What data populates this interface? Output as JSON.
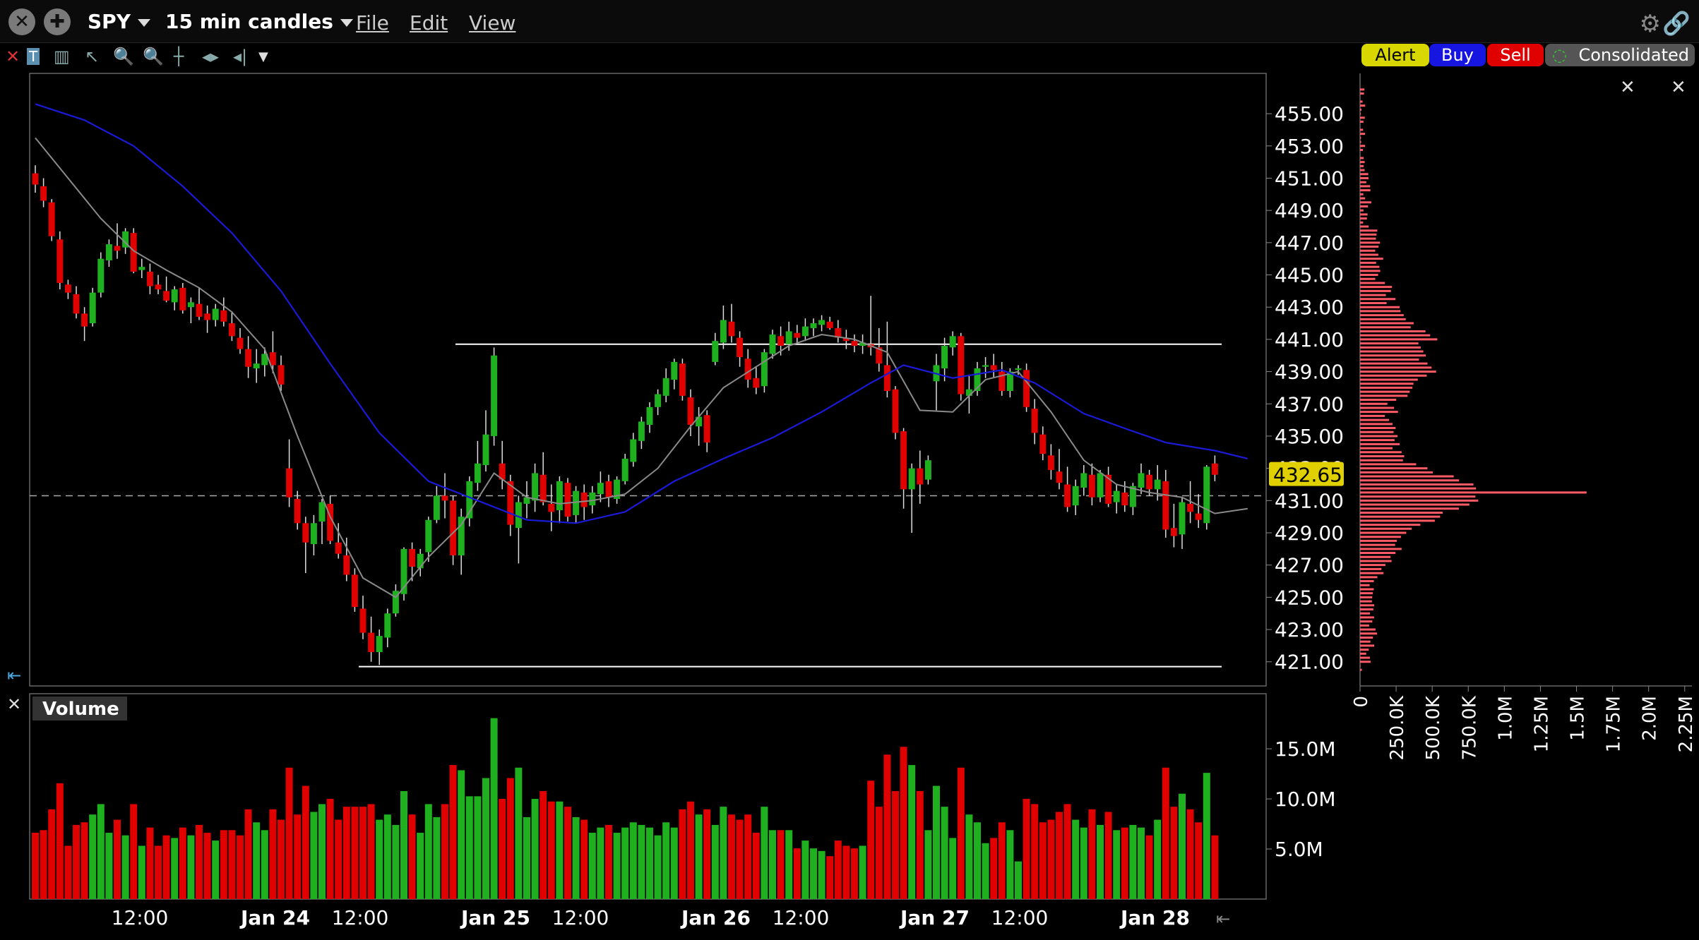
{
  "toolbar": {
    "symbol": "SPY",
    "interval": "15 min candles",
    "menu_file": "File",
    "menu_edit": "Edit",
    "menu_view": "View"
  },
  "order_buttons": {
    "alert": "Alert",
    "buy": "Buy",
    "sell": "Sell",
    "route": "Consolidated"
  },
  "colors": {
    "up": "#1fb01f",
    "down": "#e00000",
    "ma_fast": "#8a8a8a",
    "ma_slow": "#1a1ad8",
    "volume_profile": "#ff5a66",
    "last_price_bg": "#e0d000"
  },
  "chart_data": [
    {
      "type": "candlestick",
      "title": "",
      "ylim": [
        419.5,
        457.5
      ],
      "yticks": [
        "455.00",
        "453.00",
        "451.00",
        "449.00",
        "447.00",
        "445.00",
        "443.00",
        "441.00",
        "439.00",
        "437.00",
        "435.00",
        "433.00",
        "431.00",
        "429.00",
        "427.00",
        "425.00",
        "423.00",
        "421.00"
      ],
      "x_tick_labels": [
        "12:00",
        "Jan 24",
        "12:00",
        "Jan 25",
        "12:00",
        "Jan 26",
        "12:00",
        "Jan 27",
        "12:00",
        "Jan 28"
      ],
      "last_price": "432.65",
      "reference_price": 431.3,
      "horizontal_lines": [
        440.7,
        420.7
      ],
      "candles": [
        [
          451.3,
          451.8,
          450.1,
          450.6
        ],
        [
          450.5,
          451.0,
          449.2,
          449.6
        ],
        [
          449.5,
          449.7,
          447.1,
          447.4
        ],
        [
          447.2,
          447.7,
          444.1,
          444.5
        ],
        [
          444.4,
          444.7,
          443.5,
          443.9
        ],
        [
          443.8,
          444.3,
          442.3,
          442.6
        ],
        [
          442.6,
          443.0,
          440.9,
          441.8
        ],
        [
          442.0,
          444.2,
          441.8,
          443.9
        ],
        [
          443.9,
          446.4,
          443.6,
          446.0
        ],
        [
          445.9,
          447.2,
          445.5,
          446.9
        ],
        [
          446.8,
          448.2,
          446.0,
          446.5
        ],
        [
          446.7,
          447.9,
          446.3,
          447.7
        ],
        [
          447.6,
          447.9,
          445.1,
          445.2
        ],
        [
          445.3,
          446.0,
          444.8,
          445.5
        ],
        [
          445.2,
          445.7,
          443.8,
          444.3
        ],
        [
          444.4,
          445.0,
          443.8,
          444.1
        ],
        [
          444.0,
          444.9,
          443.3,
          443.4
        ],
        [
          443.3,
          444.3,
          442.8,
          444.1
        ],
        [
          444.2,
          444.5,
          442.6,
          442.8
        ],
        [
          443.0,
          443.6,
          442.0,
          443.3
        ],
        [
          443.2,
          444.2,
          442.2,
          442.4
        ],
        [
          442.6,
          443.1,
          441.4,
          442.2
        ],
        [
          442.2,
          443.2,
          441.8,
          442.9
        ],
        [
          442.8,
          443.6,
          441.8,
          442.1
        ],
        [
          442.0,
          442.7,
          440.9,
          441.2
        ],
        [
          441.1,
          441.7,
          440.1,
          440.4
        ],
        [
          440.4,
          441.2,
          438.6,
          439.3
        ],
        [
          439.2,
          440.4,
          438.3,
          439.5
        ],
        [
          439.4,
          440.5,
          438.7,
          440.1
        ],
        [
          440.2,
          441.5,
          438.9,
          439.4
        ],
        [
          439.4,
          440.0,
          437.8,
          438.2
        ],
        [
          433.0,
          434.8,
          430.6,
          431.2
        ],
        [
          431.1,
          431.6,
          429.2,
          429.6
        ],
        [
          429.6,
          430.0,
          426.5,
          428.4
        ],
        [
          428.3,
          430.1,
          427.6,
          429.6
        ],
        [
          429.7,
          431.1,
          428.3,
          430.9
        ],
        [
          430.8,
          431.3,
          428.3,
          428.5
        ],
        [
          428.4,
          429.6,
          427.4,
          427.7
        ],
        [
          427.6,
          428.7,
          426.0,
          426.4
        ],
        [
          426.4,
          426.8,
          424.1,
          424.4
        ],
        [
          424.3,
          425.1,
          422.4,
          422.8
        ],
        [
          422.8,
          423.8,
          421.0,
          421.6
        ],
        [
          421.6,
          423.0,
          420.8,
          422.6
        ],
        [
          422.5,
          424.3,
          421.9,
          424.0
        ],
        [
          424.0,
          425.8,
          423.8,
          425.4
        ],
        [
          425.2,
          428.1,
          424.8,
          428.0
        ],
        [
          428.0,
          428.4,
          426.0,
          426.9
        ],
        [
          426.8,
          428.0,
          426.3,
          427.7
        ],
        [
          427.8,
          430.0,
          427.2,
          429.8
        ],
        [
          429.8,
          431.9,
          429.6,
          431.3
        ],
        [
          431.3,
          432.7,
          429.9,
          431.0
        ],
        [
          431.0,
          431.3,
          427.0,
          427.6
        ],
        [
          427.6,
          430.5,
          426.4,
          430.0
        ],
        [
          429.9,
          432.5,
          429.4,
          432.2
        ],
        [
          432.1,
          434.7,
          431.6,
          433.3
        ],
        [
          433.2,
          436.6,
          432.8,
          435.1
        ],
        [
          435.0,
          440.5,
          434.4,
          440.0
        ],
        [
          433.3,
          434.7,
          431.7,
          432.3
        ],
        [
          432.2,
          432.6,
          428.8,
          429.5
        ],
        [
          429.3,
          431.3,
          427.1,
          430.9
        ],
        [
          430.8,
          432.2,
          429.9,
          431.2
        ],
        [
          431.0,
          433.3,
          430.3,
          432.7
        ],
        [
          432.6,
          434.0,
          430.7,
          430.9
        ],
        [
          430.8,
          432.0,
          429.1,
          430.3
        ],
        [
          430.4,
          432.5,
          429.6,
          432.2
        ],
        [
          432.1,
          432.4,
          429.7,
          430.0
        ],
        [
          430.1,
          431.9,
          429.6,
          431.6
        ],
        [
          431.5,
          432.0,
          429.8,
          430.6
        ],
        [
          430.7,
          431.9,
          430.2,
          431.5
        ],
        [
          431.4,
          432.8,
          430.9,
          432.1
        ],
        [
          432.2,
          432.6,
          430.6,
          431.2
        ],
        [
          431.1,
          432.5,
          430.8,
          432.3
        ],
        [
          432.2,
          433.9,
          432.0,
          433.6
        ],
        [
          433.4,
          435.2,
          433.1,
          434.8
        ],
        [
          434.7,
          436.2,
          434.2,
          435.9
        ],
        [
          435.7,
          437.1,
          435.2,
          436.8
        ],
        [
          436.8,
          437.9,
          436.3,
          437.6
        ],
        [
          437.5,
          439.2,
          437.1,
          438.6
        ],
        [
          438.5,
          439.8,
          437.9,
          439.6
        ],
        [
          439.5,
          439.8,
          437.2,
          437.5
        ],
        [
          437.4,
          437.9,
          435.0,
          435.7
        ],
        [
          435.6,
          436.8,
          434.4,
          436.2
        ],
        [
          436.3,
          436.6,
          434.0,
          434.6
        ],
        [
          439.6,
          441.4,
          439.4,
          440.9
        ],
        [
          440.8,
          443.1,
          440.4,
          442.2
        ],
        [
          442.1,
          443.2,
          440.8,
          441.2
        ],
        [
          441.1,
          441.5,
          439.3,
          439.9
        ],
        [
          439.8,
          440.4,
          438.0,
          438.5
        ],
        [
          438.6,
          439.3,
          437.6,
          438.0
        ],
        [
          438.1,
          440.4,
          437.7,
          440.2
        ],
        [
          440.1,
          441.6,
          439.8,
          441.3
        ],
        [
          441.2,
          441.8,
          440.0,
          440.6
        ],
        [
          440.7,
          442.1,
          440.3,
          441.5
        ],
        [
          441.4,
          441.9,
          440.8,
          441.1
        ],
        [
          441.2,
          442.3,
          440.9,
          441.8
        ],
        [
          441.7,
          442.3,
          441.2,
          442.0
        ],
        [
          441.9,
          442.5,
          441.5,
          442.2
        ],
        [
          442.1,
          442.4,
          441.6,
          441.7
        ],
        [
          441.7,
          442.2,
          440.8,
          441.1
        ],
        [
          441.1,
          441.6,
          440.4,
          440.9
        ],
        [
          440.9,
          441.3,
          440.2,
          440.6
        ],
        [
          440.6,
          441.3,
          440.1,
          440.8
        ],
        [
          440.7,
          443.7,
          440.0,
          440.5
        ],
        [
          440.5,
          441.7,
          439.0,
          439.5
        ],
        [
          439.4,
          442.1,
          437.4,
          437.8
        ],
        [
          437.9,
          438.1,
          434.8,
          435.2
        ],
        [
          435.3,
          435.5,
          430.5,
          431.7
        ],
        [
          431.7,
          433.3,
          429.0,
          433.0
        ],
        [
          433.0,
          434.1,
          430.8,
          432.0
        ],
        [
          432.3,
          433.8,
          432.0,
          433.5
        ],
        [
          438.4,
          440.1,
          436.6,
          439.4
        ],
        [
          439.2,
          441.1,
          438.4,
          440.6
        ],
        [
          440.5,
          441.5,
          440.0,
          441.2
        ],
        [
          441.2,
          441.4,
          437.2,
          437.6
        ],
        [
          437.5,
          438.8,
          436.4,
          437.9
        ],
        [
          437.8,
          439.6,
          437.5,
          439.2
        ],
        [
          439.3,
          439.9,
          438.6,
          439.4
        ],
        [
          439.4,
          440.1,
          438.6,
          439.1
        ],
        [
          439.0,
          439.6,
          437.5,
          437.8
        ],
        [
          437.8,
          439.2,
          437.4,
          439.0
        ],
        [
          439.1,
          439.4,
          438.8,
          439.2
        ],
        [
          439.1,
          439.5,
          436.5,
          436.8
        ],
        [
          436.7,
          437.3,
          434.5,
          435.2
        ],
        [
          435.1,
          435.6,
          433.5,
          433.9
        ],
        [
          433.8,
          434.5,
          432.3,
          432.9
        ],
        [
          432.8,
          434.2,
          431.7,
          432.1
        ],
        [
          432.0,
          433.1,
          430.3,
          430.6
        ],
        [
          430.7,
          432.3,
          430.1,
          431.9
        ],
        [
          431.8,
          433.2,
          431.3,
          432.7
        ],
        [
          432.6,
          433.3,
          430.7,
          431.2
        ],
        [
          431.2,
          432.9,
          430.9,
          432.7
        ],
        [
          432.6,
          433.1,
          430.6,
          430.8
        ],
        [
          430.9,
          432.0,
          430.2,
          431.6
        ],
        [
          431.5,
          432.2,
          430.3,
          430.7
        ],
        [
          430.6,
          432.1,
          430.1,
          431.9
        ],
        [
          431.8,
          433.3,
          431.4,
          432.7
        ],
        [
          432.6,
          432.9,
          431.3,
          431.7
        ],
        [
          431.7,
          433.2,
          431.0,
          432.3
        ],
        [
          432.2,
          432.9,
          428.7,
          429.2
        ],
        [
          429.3,
          430.8,
          428.1,
          428.8
        ],
        [
          428.9,
          431.2,
          428.0,
          430.9
        ],
        [
          430.8,
          432.2,
          429.6,
          430.3
        ],
        [
          430.2,
          431.4,
          429.3,
          429.8
        ],
        [
          429.6,
          433.2,
          429.2,
          433.1
        ],
        [
          433.3,
          433.8,
          432.2,
          432.6
        ]
      ],
      "ma_fast": [
        [
          0,
          453.5
        ],
        [
          4,
          451.0
        ],
        [
          8,
          448.5
        ],
        [
          12,
          446.5
        ],
        [
          16,
          445.3
        ],
        [
          20,
          444.2
        ],
        [
          24,
          442.7
        ],
        [
          28,
          440.4
        ],
        [
          32,
          435.0
        ],
        [
          36,
          430.0
        ],
        [
          40,
          426.2
        ],
        [
          44,
          425.0
        ],
        [
          48,
          427.5
        ],
        [
          52,
          429.5
        ],
        [
          56,
          432.7
        ],
        [
          60,
          431.2
        ],
        [
          64,
          430.8
        ],
        [
          68,
          431.0
        ],
        [
          72,
          431.4
        ],
        [
          76,
          433.0
        ],
        [
          80,
          435.6
        ],
        [
          84,
          438.0
        ],
        [
          88,
          439.3
        ],
        [
          92,
          440.6
        ],
        [
          96,
          441.3
        ],
        [
          100,
          441.0
        ],
        [
          104,
          440.2
        ],
        [
          108,
          436.6
        ],
        [
          112,
          436.5
        ],
        [
          116,
          438.5
        ],
        [
          120,
          439.0
        ],
        [
          124,
          436.5
        ],
        [
          128,
          433.5
        ],
        [
          132,
          432.0
        ],
        [
          136,
          431.5
        ],
        [
          140,
          431.2
        ],
        [
          144,
          430.2
        ],
        [
          148,
          430.5
        ]
      ],
      "ma_slow": [
        [
          0,
          455.6
        ],
        [
          6,
          454.6
        ],
        [
          12,
          453.0
        ],
        [
          18,
          450.5
        ],
        [
          24,
          447.6
        ],
        [
          30,
          444.0
        ],
        [
          36,
          439.5
        ],
        [
          42,
          435.2
        ],
        [
          48,
          432.2
        ],
        [
          54,
          431.0
        ],
        [
          60,
          429.8
        ],
        [
          66,
          429.6
        ],
        [
          72,
          430.3
        ],
        [
          78,
          432.2
        ],
        [
          84,
          433.6
        ],
        [
          90,
          434.9
        ],
        [
          96,
          436.5
        ],
        [
          102,
          438.3
        ],
        [
          106,
          439.4
        ],
        [
          112,
          438.6
        ],
        [
          118,
          439.1
        ],
        [
          122,
          438.3
        ],
        [
          128,
          436.4
        ],
        [
          134,
          435.3
        ],
        [
          138,
          434.6
        ],
        [
          144,
          434.1
        ],
        [
          148,
          433.6
        ]
      ],
      "volume_panel": {
        "title": "Volume",
        "yticks": [
          "15.0M",
          "10.0M",
          "5.0M"
        ],
        "ylim": [
          0,
          20.5
        ]
      },
      "volume_profile": {
        "xticks": [
          "0",
          "250.0K",
          "500.0K",
          "750.0K",
          "1.0M",
          "1.25M",
          "1.5M",
          "1.75M",
          "2.0M",
          "2.25M"
        ],
        "xlim": [
          0,
          2300000
        ],
        "peak_price": 431.5,
        "peak_value": 1570000
      }
    }
  ]
}
